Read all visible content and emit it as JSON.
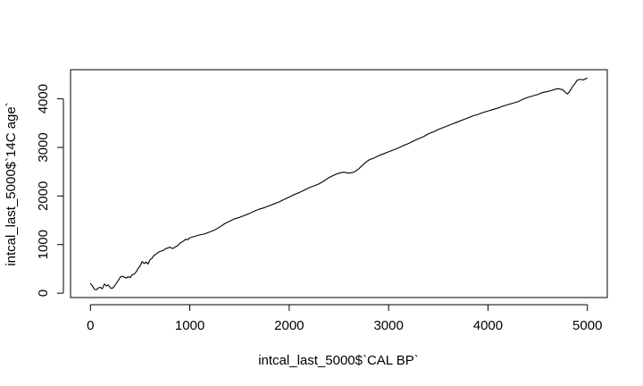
{
  "chart_data": {
    "type": "line",
    "xlabel": "intcal_last_5000$`CAL BP`",
    "ylabel": "intcal_last_5000$`14C age`",
    "xlim": [
      -200,
      5200
    ],
    "ylim": [
      -90,
      4600
    ],
    "x_ticks": [
      0,
      1000,
      2000,
      3000,
      4000,
      5000
    ],
    "x_tick_labels": [
      "0",
      "1000",
      "2000",
      "3000",
      "4000",
      "5000"
    ],
    "y_ticks": [
      0,
      1000,
      2000,
      3000,
      4000
    ],
    "y_tick_labels": [
      "0",
      "1000",
      "2000",
      "3000",
      "4000"
    ],
    "grid": false,
    "series": [
      {
        "x": [
          0,
          20,
          40,
          60,
          80,
          100,
          120,
          140,
          160,
          180,
          200,
          220,
          240,
          260,
          280,
          300,
          320,
          340,
          360,
          380,
          400,
          420,
          440,
          460,
          480,
          500,
          520,
          540,
          560,
          580,
          600,
          620,
          640,
          660,
          680,
          700,
          720,
          740,
          760,
          780,
          800,
          820,
          840,
          860,
          880,
          900,
          920,
          940,
          960,
          980,
          1000,
          1050,
          1100,
          1150,
          1200,
          1250,
          1300,
          1350,
          1400,
          1450,
          1500,
          1550,
          1600,
          1650,
          1700,
          1750,
          1800,
          1850,
          1900,
          1950,
          2000,
          2050,
          2100,
          2150,
          2200,
          2250,
          2300,
          2350,
          2400,
          2450,
          2500,
          2550,
          2600,
          2650,
          2700,
          2750,
          2800,
          2850,
          2900,
          2950,
          3000,
          3050,
          3100,
          3150,
          3200,
          3250,
          3300,
          3350,
          3400,
          3450,
          3500,
          3550,
          3600,
          3650,
          3700,
          3750,
          3800,
          3850,
          3900,
          3950,
          4000,
          4050,
          4100,
          4150,
          4200,
          4250,
          4300,
          4350,
          4400,
          4450,
          4500,
          4550,
          4600,
          4650,
          4700,
          4750,
          4780,
          4800,
          4820,
          4850,
          4880,
          4900,
          4930,
          4960,
          5000
        ],
        "y": [
          200,
          150,
          80,
          70,
          110,
          120,
          90,
          190,
          150,
          170,
          110,
          100,
          140,
          200,
          260,
          330,
          350,
          330,
          310,
          340,
          320,
          380,
          390,
          440,
          510,
          560,
          650,
          610,
          640,
          600,
          690,
          720,
          780,
          800,
          840,
          860,
          870,
          890,
          920,
          930,
          950,
          920,
          930,
          960,
          980,
          1030,
          1050,
          1080,
          1110,
          1100,
          1140,
          1170,
          1200,
          1220,
          1260,
          1300,
          1360,
          1430,
          1480,
          1530,
          1560,
          1600,
          1640,
          1690,
          1730,
          1760,
          1800,
          1840,
          1880,
          1930,
          1980,
          2030,
          2070,
          2120,
          2170,
          2210,
          2250,
          2310,
          2380,
          2430,
          2470,
          2490,
          2470,
          2490,
          2560,
          2660,
          2740,
          2780,
          2830,
          2870,
          2910,
          2950,
          2990,
          3040,
          3080,
          3130,
          3180,
          3220,
          3280,
          3320,
          3370,
          3410,
          3450,
          3490,
          3530,
          3570,
          3610,
          3650,
          3680,
          3720,
          3750,
          3780,
          3810,
          3850,
          3880,
          3910,
          3940,
          3990,
          4030,
          4060,
          4090,
          4130,
          4150,
          4180,
          4210,
          4190,
          4130,
          4100,
          4150,
          4250,
          4330,
          4390,
          4400,
          4390,
          4430
        ]
      }
    ]
  }
}
